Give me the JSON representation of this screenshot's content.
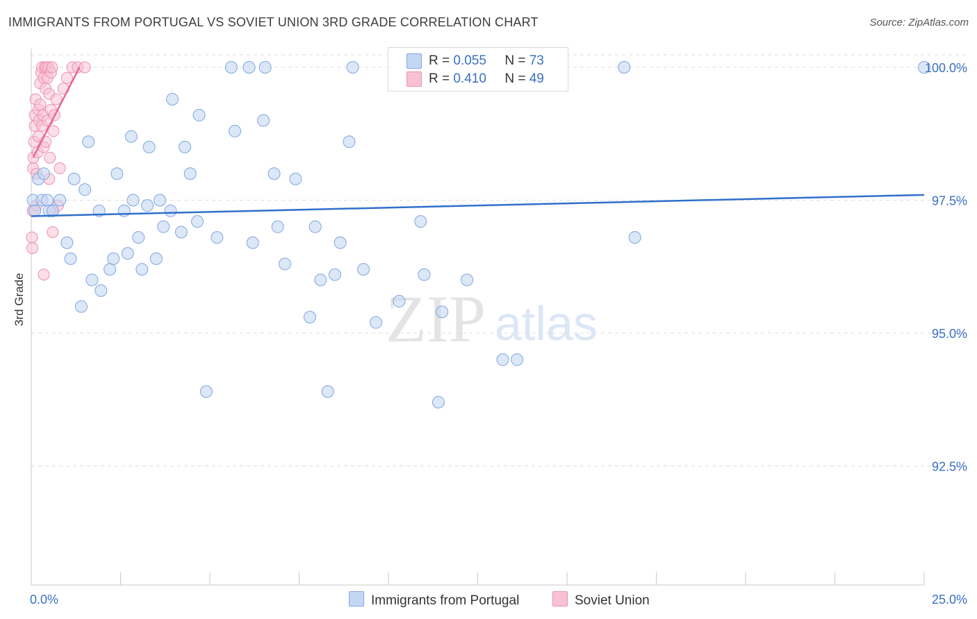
{
  "title": "IMMIGRANTS FROM PORTUGAL VS SOVIET UNION 3RD GRADE CORRELATION CHART",
  "source": "Source: ZipAtlas.com",
  "watermark": {
    "zip": "ZIP",
    "atlas": "atlas"
  },
  "legend": [
    {
      "r_label": "R =",
      "r_value": "0.055",
      "n_label": "N =",
      "n_value": "73"
    },
    {
      "r_label": "R =",
      "r_value": "0.410",
      "n_label": "N =",
      "n_value": "49"
    }
  ],
  "colors": {
    "blue_fill": "#c4d7f2",
    "blue_stroke": "#7ea6e0",
    "blue_line": "#2f6fcb",
    "pink_fill": "#f7c3d3",
    "pink_stroke": "#ec8fb0",
    "pink_line": "#e8688f",
    "tick_label": "#3a6fc4",
    "grid": "#dcdcdc"
  },
  "chart_data": {
    "type": "scatter",
    "title": "IMMIGRANTS FROM PORTUGAL VS SOVIET UNION 3RD GRADE CORRELATION CHART",
    "xlabel": "",
    "ylabel": "3rd Grade",
    "xlim": [
      0,
      25
    ],
    "ylim": [
      90.0,
      100.3
    ],
    "x_tick_labels": [
      "0.0%",
      "25.0%"
    ],
    "y_ticks": [
      92.5,
      95.0,
      97.5,
      100.0
    ],
    "y_tick_labels": [
      "92.5%",
      "95.0%",
      "97.5%",
      "100.0%"
    ],
    "grid": "horizontal dashed",
    "legend_position": "bottom",
    "series": [
      {
        "name": "Immigrants from Portugal",
        "trend": {
          "x": [
            0,
            25
          ],
          "y": [
            97.2,
            97.6
          ]
        },
        "points": [
          [
            0.05,
            97.5
          ],
          [
            0.1,
            97.3
          ],
          [
            0.2,
            97.9
          ],
          [
            0.3,
            97.5
          ],
          [
            0.35,
            98.0
          ],
          [
            0.45,
            97.5
          ],
          [
            0.5,
            97.3
          ],
          [
            0.6,
            97.3
          ],
          [
            0.8,
            97.5
          ],
          [
            1.0,
            96.7
          ],
          [
            1.1,
            96.4
          ],
          [
            1.2,
            97.9
          ],
          [
            1.4,
            95.5
          ],
          [
            1.5,
            97.7
          ],
          [
            1.6,
            98.6
          ],
          [
            1.7,
            96.0
          ],
          [
            1.9,
            97.3
          ],
          [
            1.95,
            95.8
          ],
          [
            2.2,
            96.2
          ],
          [
            2.3,
            96.4
          ],
          [
            2.4,
            98.0
          ],
          [
            2.6,
            97.3
          ],
          [
            2.7,
            96.5
          ],
          [
            2.8,
            98.7
          ],
          [
            2.85,
            97.5
          ],
          [
            3.0,
            96.8
          ],
          [
            3.1,
            96.2
          ],
          [
            3.25,
            97.4
          ],
          [
            3.3,
            98.5
          ],
          [
            3.5,
            96.4
          ],
          [
            3.6,
            97.5
          ],
          [
            3.7,
            97.0
          ],
          [
            3.9,
            97.3
          ],
          [
            3.95,
            99.4
          ],
          [
            4.2,
            96.9
          ],
          [
            4.3,
            98.5
          ],
          [
            4.45,
            98.0
          ],
          [
            4.65,
            97.1
          ],
          [
            4.7,
            99.1
          ],
          [
            4.9,
            93.9
          ],
          [
            5.2,
            96.8
          ],
          [
            5.6,
            100.0
          ],
          [
            5.7,
            98.8
          ],
          [
            6.1,
            100.0
          ],
          [
            6.2,
            96.7
          ],
          [
            6.5,
            99.0
          ],
          [
            6.55,
            100.0
          ],
          [
            6.8,
            98.0
          ],
          [
            6.9,
            97.0
          ],
          [
            7.1,
            96.3
          ],
          [
            7.4,
            97.9
          ],
          [
            7.8,
            95.3
          ],
          [
            7.95,
            97.0
          ],
          [
            8.1,
            96.0
          ],
          [
            8.3,
            93.9
          ],
          [
            8.5,
            96.1
          ],
          [
            8.65,
            96.7
          ],
          [
            8.9,
            98.6
          ],
          [
            9.0,
            100.0
          ],
          [
            9.3,
            96.2
          ],
          [
            9.65,
            95.2
          ],
          [
            10.3,
            95.6
          ],
          [
            10.9,
            97.1
          ],
          [
            11.0,
            96.1
          ],
          [
            11.4,
            93.7
          ],
          [
            11.5,
            95.4
          ],
          [
            12.2,
            96.0
          ],
          [
            13.2,
            94.5
          ],
          [
            13.6,
            94.5
          ],
          [
            14.0,
            100.0
          ],
          [
            16.6,
            100.0
          ],
          [
            16.9,
            96.8
          ],
          [
            25.0,
            100.0
          ]
        ]
      },
      {
        "name": "Soviet Union",
        "trend": {
          "x": [
            0.05,
            1.35
          ],
          "y": [
            98.3,
            100.0
          ]
        },
        "points": [
          [
            0.02,
            96.8
          ],
          [
            0.03,
            96.6
          ],
          [
            0.04,
            97.3
          ],
          [
            0.05,
            98.1
          ],
          [
            0.06,
            98.3
          ],
          [
            0.08,
            98.6
          ],
          [
            0.1,
            98.9
          ],
          [
            0.1,
            99.1
          ],
          [
            0.12,
            99.4
          ],
          [
            0.15,
            97.4
          ],
          [
            0.15,
            98.0
          ],
          [
            0.18,
            98.4
          ],
          [
            0.2,
            98.7
          ],
          [
            0.2,
            99.2
          ],
          [
            0.22,
            99.0
          ],
          [
            0.25,
            99.3
          ],
          [
            0.25,
            99.7
          ],
          [
            0.28,
            99.9
          ],
          [
            0.3,
            98.9
          ],
          [
            0.3,
            100.0
          ],
          [
            0.33,
            99.1
          ],
          [
            0.35,
            98.5
          ],
          [
            0.35,
            99.8
          ],
          [
            0.38,
            100.0
          ],
          [
            0.4,
            98.6
          ],
          [
            0.4,
            99.6
          ],
          [
            0.42,
            100.0
          ],
          [
            0.45,
            99.0
          ],
          [
            0.45,
            99.8
          ],
          [
            0.48,
            100.0
          ],
          [
            0.5,
            99.5
          ],
          [
            0.5,
            97.9
          ],
          [
            0.52,
            98.3
          ],
          [
            0.55,
            99.2
          ],
          [
            0.55,
            99.9
          ],
          [
            0.58,
            100.0
          ],
          [
            0.6,
            97.3
          ],
          [
            0.62,
            98.8
          ],
          [
            0.65,
            99.1
          ],
          [
            0.7,
            99.4
          ],
          [
            0.75,
            97.4
          ],
          [
            0.8,
            98.1
          ],
          [
            0.9,
            99.6
          ],
          [
            1.0,
            99.8
          ],
          [
            1.15,
            100.0
          ],
          [
            1.3,
            100.0
          ],
          [
            1.5,
            100.0
          ],
          [
            0.35,
            96.1
          ],
          [
            0.6,
            96.9
          ]
        ]
      }
    ]
  },
  "bottom_legend": [
    {
      "label": "Immigrants from Portugal"
    },
    {
      "label": "Soviet Union"
    }
  ]
}
